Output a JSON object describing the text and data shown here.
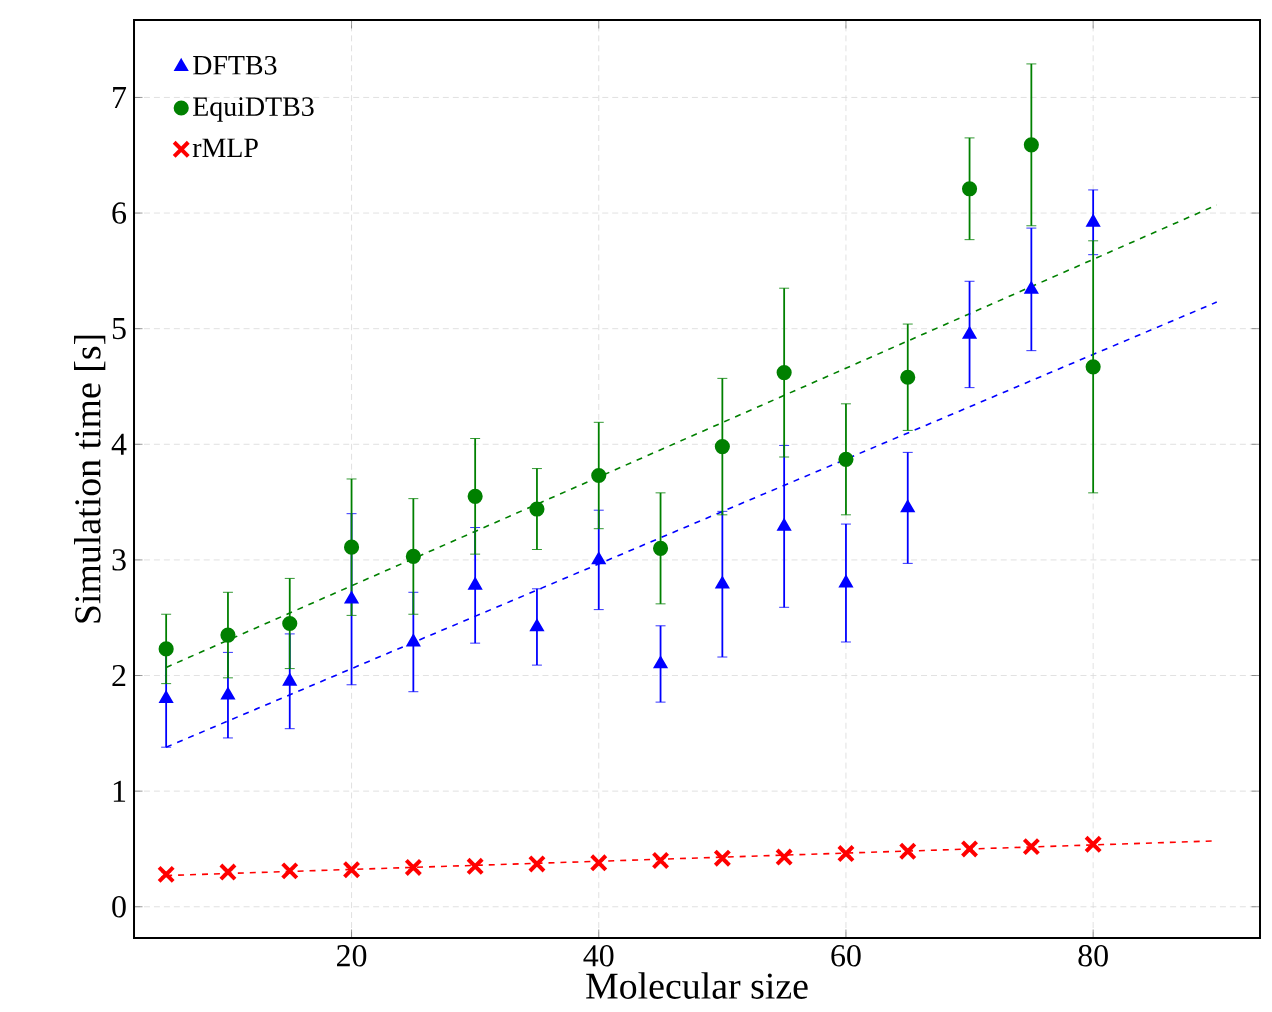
{
  "chart_data": {
    "type": "scatter",
    "xlabel": "Molecular size",
    "ylabel": "Simulation time [s]",
    "xlim": [
      2.4,
      93.5
    ],
    "ylim": [
      -0.27,
      7.67
    ],
    "xticks": [
      20,
      40,
      60,
      80
    ],
    "yticks": [
      0,
      1,
      2,
      3,
      4,
      5,
      6,
      7
    ],
    "grid": true,
    "legend": "top left",
    "series": [
      {
        "name": "DFTB3",
        "color": "#0000ff",
        "marker": "triangle",
        "x": [
          5,
          10,
          15,
          20,
          25,
          30,
          35,
          40,
          45,
          50,
          55,
          60,
          65,
          70,
          75,
          80
        ],
        "values": [
          1.8,
          1.83,
          1.95,
          2.66,
          2.29,
          2.78,
          2.42,
          3.0,
          2.1,
          2.79,
          3.29,
          2.8,
          3.45,
          4.95,
          5.34,
          5.92
        ],
        "errors": [
          0.42,
          0.37,
          0.41,
          0.74,
          0.43,
          0.5,
          0.33,
          0.43,
          0.33,
          0.63,
          0.7,
          0.51,
          0.48,
          0.46,
          0.53,
          0.28
        ]
      },
      {
        "name": "EquiDTB3",
        "color": "#008000",
        "marker": "circle",
        "x": [
          5,
          10,
          15,
          20,
          25,
          30,
          35,
          40,
          45,
          50,
          55,
          60,
          65,
          70,
          75,
          80
        ],
        "values": [
          2.23,
          2.35,
          2.45,
          3.11,
          3.03,
          3.55,
          3.44,
          3.73,
          3.1,
          3.98,
          4.62,
          3.87,
          4.58,
          6.21,
          6.59,
          4.67
        ],
        "errors": [
          0.3,
          0.37,
          0.39,
          0.59,
          0.5,
          0.5,
          0.35,
          0.46,
          0.48,
          0.59,
          0.73,
          0.48,
          0.46,
          0.44,
          0.7,
          1.09
        ]
      },
      {
        "name": "rMLP",
        "color": "#ff0000",
        "marker": "cross",
        "x": [
          5,
          10,
          15,
          20,
          25,
          30,
          35,
          40,
          45,
          50,
          55,
          60,
          65,
          70,
          75,
          80
        ],
        "values": [
          0.28,
          0.3,
          0.31,
          0.32,
          0.34,
          0.35,
          0.37,
          0.38,
          0.4,
          0.42,
          0.43,
          0.46,
          0.48,
          0.5,
          0.52,
          0.54
        ],
        "errors": [
          0.02,
          0.02,
          0.02,
          0.02,
          0.02,
          0.02,
          0.02,
          0.02,
          0.02,
          0.02,
          0.02,
          0.02,
          0.02,
          0.02,
          0.02,
          0.02
        ]
      },
      {
        "type": "line",
        "color": "#0000ff",
        "line_style": "dashed",
        "marker": "none",
        "x": [
          5,
          90
        ],
        "values": [
          1.38,
          5.23
        ]
      },
      {
        "type": "line",
        "color": "#008000",
        "line_style": "dashed",
        "marker": "none",
        "x": [
          5,
          90
        ],
        "values": [
          2.07,
          6.07
        ]
      },
      {
        "type": "line",
        "color": "#ff0000",
        "line_style": "dashed",
        "marker": "none",
        "x": [
          5,
          90
        ],
        "values": [
          0.27,
          0.57
        ]
      }
    ]
  }
}
